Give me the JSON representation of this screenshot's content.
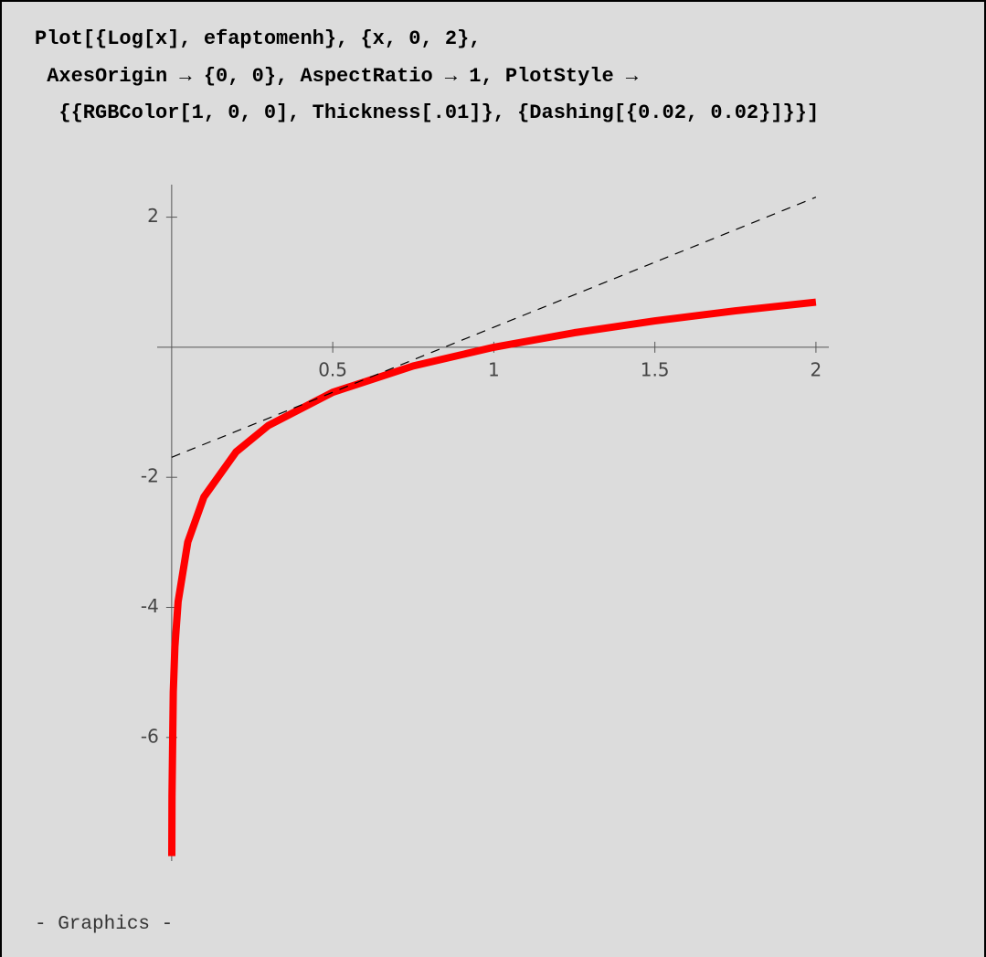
{
  "input": [
    "Plot[{Log[x], efaptomenh}, {x, 0, 2},",
    " AxesOrigin → {0, 0}, AspectRatio → 1, PlotStyle →",
    "  {{RGBColor[1, 0, 0], Thickness[.01]}, {Dashing[{0.02, 0.02}]}}]"
  ],
  "chart_data": {
    "type": "line",
    "xlim": [
      -0.045,
      2.04
    ],
    "ylim": [
      -7.9,
      2.5
    ],
    "xticks": [
      0.5,
      1,
      1.5,
      2
    ],
    "yticks": [
      -6,
      -4,
      -2,
      2
    ],
    "series": [
      {
        "name": "Log[x]",
        "color": "#ff0000",
        "x": [
          0.0004,
          0.001,
          0.005,
          0.01,
          0.02,
          0.05,
          0.1,
          0.2,
          0.3,
          0.5,
          0.75,
          1,
          1.25,
          1.5,
          1.75,
          2
        ],
        "values": [
          -7.824,
          -6.908,
          -5.298,
          -4.605,
          -3.912,
          -2.996,
          -2.303,
          -1.609,
          -1.204,
          -0.693,
          -0.288,
          0,
          0.223,
          0.405,
          0.56,
          0.693
        ]
      },
      {
        "name": "efaptomenh",
        "color": "#000000",
        "dashed": true,
        "x": [
          0,
          2
        ],
        "values": [
          -1.693,
          2.307
        ]
      }
    ]
  },
  "output": "- Graphics -"
}
